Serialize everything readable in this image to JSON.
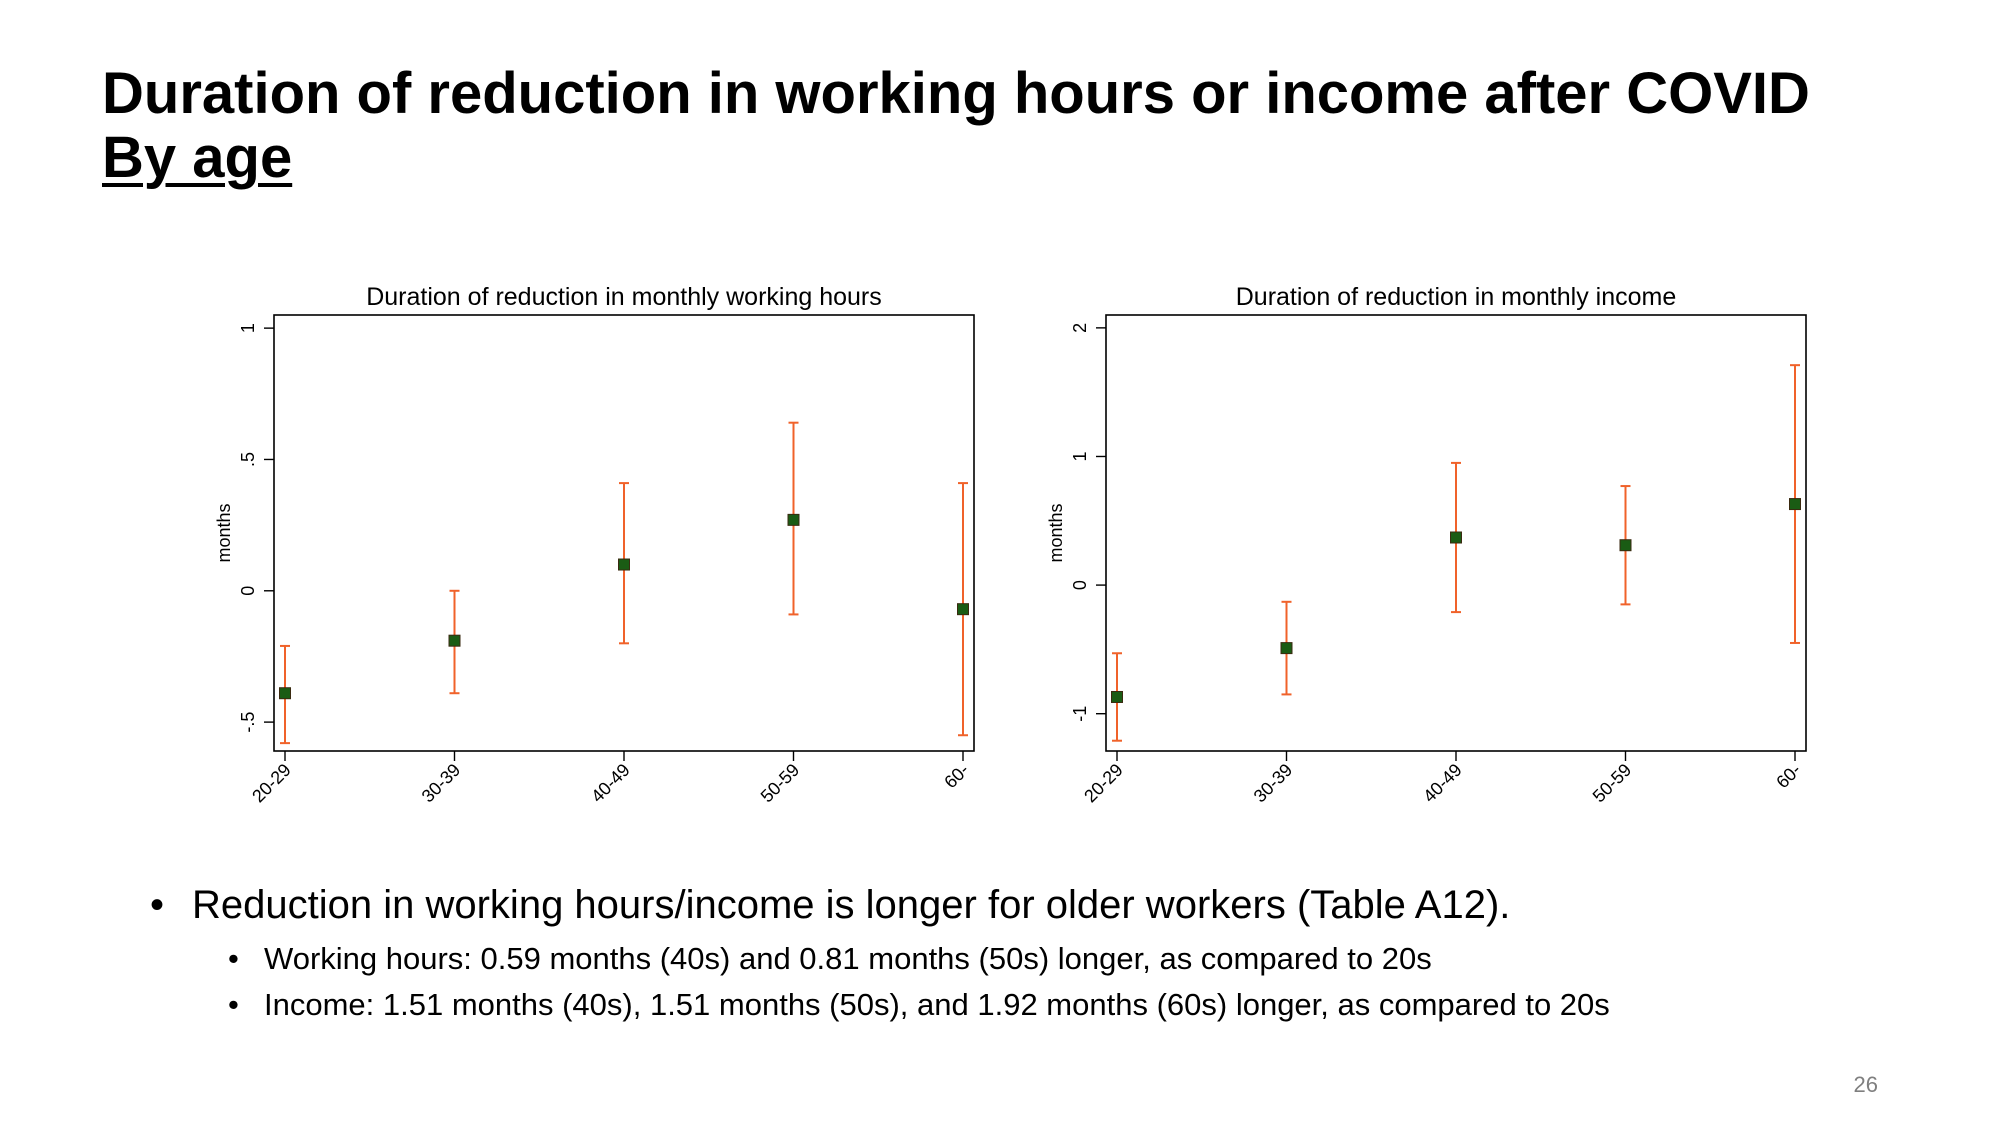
{
  "slide": {
    "title_line1": "Duration of reduction in working hours or income after COVID",
    "title_line2": "By age",
    "bullets": [
      {
        "text": "Reduction in working hours/income is longer for older workers (Table A12).",
        "sub": [
          "Working hours: 0.59 months (40s) and 0.81 months (50s) longer, as compared to 20s",
          "Income: 1.51 months (40s), 1.51 months (50s), and 1.92 months (60s) longer, as compared to 20s"
        ]
      }
    ],
    "page_number": "26"
  },
  "colors": {
    "point": "#1a5c14",
    "error_bar": "#f0622a",
    "axis": "#000000"
  },
  "chart_data": [
    {
      "type": "scatter",
      "title": "Duration of reduction in monthly working hours",
      "xlabel": "",
      "ylabel": "months",
      "categories": [
        "20-29",
        "30-39",
        "40-49",
        "50-59",
        "60-"
      ],
      "values": [
        -0.39,
        -0.19,
        0.1,
        0.27,
        -0.07
      ],
      "ci_low": [
        -0.58,
        -0.39,
        -0.2,
        -0.09,
        -0.55
      ],
      "ci_high": [
        -0.21,
        0.0,
        0.41,
        0.64,
        0.41
      ],
      "yticks": [
        -0.5,
        0,
        0.5,
        1
      ],
      "ytick_labels": [
        "-.5",
        "0",
        ".5",
        "1"
      ],
      "ylim": [
        -0.61,
        1.05
      ],
      "grid": false,
      "legend": "none"
    },
    {
      "type": "scatter",
      "title": "Duration of reduction in monthly income",
      "xlabel": "",
      "ylabel": "months",
      "categories": [
        "20-29",
        "30-39",
        "40-49",
        "50-59",
        "60-"
      ],
      "values": [
        -0.87,
        -0.49,
        0.37,
        0.31,
        0.63
      ],
      "ci_low": [
        -1.21,
        -0.85,
        -0.21,
        -0.15,
        -0.45
      ],
      "ci_high": [
        -0.53,
        -0.13,
        0.95,
        0.77,
        1.71
      ],
      "yticks": [
        -1,
        0,
        1,
        2
      ],
      "ytick_labels": [
        "-1",
        "0",
        "1",
        "2"
      ],
      "ylim": [
        -1.29,
        2.1
      ],
      "grid": false,
      "legend": "none"
    }
  ]
}
